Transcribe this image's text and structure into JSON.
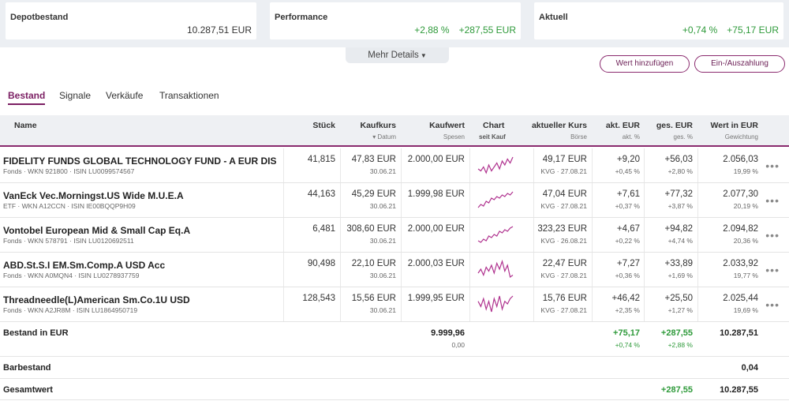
{
  "summary": {
    "depot": {
      "label": "Depotbestand",
      "value": "10.287,51 EUR"
    },
    "performance": {
      "label": "Performance",
      "pct": "+2,88 %",
      "abs": "+287,55 EUR"
    },
    "aktuell": {
      "label": "Aktuell",
      "pct": "+0,74 %",
      "abs": "+75,17 EUR"
    }
  },
  "mehr_details": "Mehr Details",
  "buttons": {
    "add_value": "Wert hinzufügen",
    "deposit": "Ein-/Auszahlung"
  },
  "tabs": [
    "Bestand",
    "Signale",
    "Verkäufe",
    "Transaktionen"
  ],
  "columns": {
    "name": "Name",
    "stueck": "Stück",
    "kaufkurs": "Kaufkurs",
    "kaufkurs_sub": "▾ Datum",
    "kaufwert": "Kaufwert",
    "kaufwert_sub": "Spesen",
    "chart": "Chart",
    "chart_sub": "seit Kauf",
    "kurs": "aktueller Kurs",
    "kurs_sub": "Börse",
    "akt": "akt. EUR",
    "akt_sub": "akt. %",
    "ges": "ges. EUR",
    "ges_sub": "ges. %",
    "wert": "Wert in EUR",
    "wert_sub": "Gewichtung"
  },
  "rows": [
    {
      "name": "FIDELITY FUNDS GLOBAL TECHNOLOGY FUND - A EUR DIS",
      "sub": "Fonds · WKN 921800 · ISIN LU0099574567",
      "stueck": "41,815",
      "kaufkurs": "47,83 EUR",
      "datum": "30.06.21",
      "kaufwert": "2.000,00 EUR",
      "kurs": "49,17 EUR",
      "boerse": "KVG · 27.08.21",
      "akt_eur": "+9,20",
      "akt_pct": "+0,45 %",
      "ges_eur": "+56,03",
      "ges_pct": "+2,80 %",
      "wert": "2.056,03",
      "gewichtung": "19,99 %",
      "spark": [
        5,
        4,
        6,
        3,
        7,
        4,
        6,
        8,
        5,
        9,
        7,
        10,
        8,
        11
      ]
    },
    {
      "name": "VanEck Vec.Morningst.US Wide M.U.E.A",
      "sub": "ETF · WKN A12CCN · ISIN IE00BQQP9H09",
      "stueck": "44,163",
      "kaufkurs": "45,29 EUR",
      "datum": "30.06.21",
      "kaufwert": "1.999,98 EUR",
      "kurs": "47,04 EUR",
      "boerse": "KVG · 27.08.21",
      "akt_eur": "+7,61",
      "akt_pct": "+0,37 %",
      "ges_eur": "+77,32",
      "ges_pct": "+3,87 %",
      "wert": "2.077,30",
      "gewichtung": "20,19 %",
      "spark": [
        2,
        4,
        3,
        6,
        5,
        8,
        7,
        9,
        8,
        10,
        9,
        11,
        10,
        12
      ]
    },
    {
      "name": "Vontobel European Mid & Small Cap Eq.A",
      "sub": "Fonds · WKN 578791 · ISIN LU0120692511",
      "stueck": "6,481",
      "kaufkurs": "308,60 EUR",
      "datum": "30.06.21",
      "kaufwert": "2.000,00 EUR",
      "kurs": "323,23 EUR",
      "boerse": "KVG · 26.08.21",
      "akt_eur": "+4,67",
      "akt_pct": "+0,22 %",
      "ges_eur": "+94,82",
      "ges_pct": "+4,74 %",
      "wert": "2.094,82",
      "gewichtung": "20,36 %",
      "spark": [
        3,
        2,
        4,
        3,
        6,
        5,
        7,
        6,
        9,
        8,
        10,
        9,
        11,
        12
      ]
    },
    {
      "name": "ABD.St.S.I EM.Sm.Comp.A USD Acc",
      "sub": "Fonds · WKN A0MQN4 · ISIN LU0278937759",
      "stueck": "90,498",
      "kaufkurs": "22,10 EUR",
      "datum": "30.06.21",
      "kaufwert": "2.000,03 EUR",
      "kurs": "22,47 EUR",
      "boerse": "KVG · 27.08.21",
      "akt_eur": "+7,27",
      "akt_pct": "+0,36 %",
      "ges_eur": "+33,89",
      "ges_pct": "+1,69 %",
      "wert": "2.033,92",
      "gewichtung": "19,77 %",
      "spark": [
        5,
        7,
        4,
        8,
        6,
        9,
        5,
        10,
        7,
        11,
        6,
        9,
        3,
        4
      ]
    },
    {
      "name": "Threadneedle(L)American Sm.Co.1U USD",
      "sub": "Fonds · WKN A2JR8M · ISIN LU1864950719",
      "stueck": "128,543",
      "kaufkurs": "15,56 EUR",
      "datum": "30.06.21",
      "kaufwert": "1.999,95 EUR",
      "kurs": "15,76 EUR",
      "boerse": "KVG · 27.08.21",
      "akt_eur": "+46,42",
      "akt_pct": "+2,35 %",
      "ges_eur": "+25,50",
      "ges_pct": "+1,27 %",
      "wert": "2.025,44",
      "gewichtung": "19,69 %",
      "spark": [
        8,
        6,
        9,
        5,
        8,
        4,
        9,
        6,
        10,
        5,
        8,
        7,
        9,
        10
      ]
    }
  ],
  "bestand": {
    "label": "Bestand in EUR",
    "kaufwert": "9.999,96",
    "spesen": "0,00",
    "akt_eur": "+75,17",
    "akt_pct": "+0,74 %",
    "ges_eur": "+287,55",
    "ges_pct": "+2,88 %",
    "wert": "10.287,51"
  },
  "barbestand": {
    "label": "Barbestand",
    "wert": "0,04"
  },
  "gesamtwert": {
    "label": "Gesamtwert",
    "ges_eur": "+287,55",
    "wert": "10.287,55"
  },
  "row_menu": "•••",
  "colors": {
    "accent": "#8a2a6e",
    "positive": "#2e9a3a",
    "spark": "#b0338f"
  },
  "icons": {
    "row_menu": "more-dots-icon",
    "expand": "chevron-down-icon"
  }
}
